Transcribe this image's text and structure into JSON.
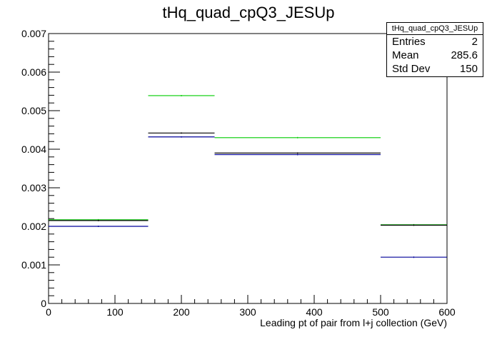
{
  "chart_data": {
    "type": "step",
    "title": "tHq_quad_cpQ3_JESUp",
    "xlabel": "Leading pt of pair from l+j collection (GeV)",
    "ylabel": "",
    "xlim": [
      0,
      600
    ],
    "ylim": [
      0,
      0.007
    ],
    "x_ticks": [
      "0",
      "100",
      "200",
      "300",
      "400",
      "500",
      "600"
    ],
    "y_ticks": [
      "0",
      "0.001",
      "0.002",
      "0.003",
      "0.004",
      "0.005",
      "0.006",
      "0.007"
    ],
    "bin_edges": [
      0,
      150,
      250,
      500,
      600
    ],
    "series": [
      {
        "color": "#00cc00",
        "values": [
          0.00217,
          0.00539,
          0.0043,
          0.00204
        ]
      },
      {
        "color": "#000000",
        "values": [
          0.00215,
          0.00442,
          0.0039,
          0.00203
        ]
      },
      {
        "color": "#000099",
        "values": [
          0.002,
          0.00432,
          0.00386,
          0.0012
        ]
      }
    ],
    "stats": {
      "title": "tHq_quad_cpQ3_JESUp",
      "rows": [
        {
          "label": "Entries",
          "value": "2"
        },
        {
          "label": "Mean",
          "value": "285.6"
        },
        {
          "label": "Std Dev",
          "value": "150"
        }
      ]
    }
  }
}
